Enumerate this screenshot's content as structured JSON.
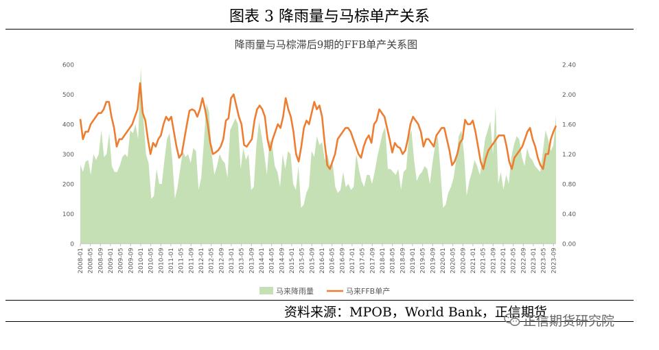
{
  "figure_title": "图表 3 降雨量与马棕单产关系",
  "source_text": "资料来源：MPOB，World Bank，正信期货",
  "watermark_text": "正信期货研究院",
  "watermark_icon": "wechat-icon",
  "colors": {
    "rain": "#c5e0b4",
    "ffb": "#ed7d31",
    "axis": "#bfbfbf",
    "tick": "#595959"
  },
  "chart_data": {
    "type": "area+line",
    "title": "降雨量与马棕滞后9期的FFB单产关系图",
    "xlabel": "",
    "ylabel": "",
    "y_left_lim": [
      0,
      600
    ],
    "y_left_ticks": [
      "0",
      "100",
      "200",
      "300",
      "400",
      "500",
      "600"
    ],
    "y_right_lim": [
      0,
      2.4
    ],
    "y_right_ticks": [
      "0.00",
      "0.40",
      "0.80",
      "1.20",
      "1.60",
      "2.00",
      "2.40"
    ],
    "x_start": "2008-01",
    "x_end": "2023-10",
    "x_tick_labels": [
      "2008-01",
      "2008-05",
      "2008-09",
      "2009-01",
      "2009-05",
      "2009-09",
      "2010-01",
      "2010-05",
      "2010-09",
      "2011-01",
      "2011-05",
      "2011-09",
      "2012-01",
      "2012-05",
      "2012-09",
      "2013-01",
      "2013-05",
      "2013-09",
      "2014-01",
      "2014-05",
      "2014-09",
      "2015-01",
      "2015-05",
      "2015-09",
      "2016-01",
      "2016-05",
      "2016-09",
      "2017-01",
      "2017-05",
      "2017-09",
      "2018-01",
      "2018-05",
      "2018-09",
      "2019-01",
      "2019-05",
      "2019-09",
      "2020-01",
      "2020-05",
      "2020-09",
      "2021-01",
      "2021-05",
      "2021-09",
      "2022-01",
      "2022-05",
      "2022-09",
      "2023-01",
      "2023-05",
      "2023-09"
    ],
    "legend_position": "bottom",
    "grid": false,
    "series": [
      {
        "name": "马来降雨量",
        "type": "area",
        "axis": "left",
        "values": [
          265,
          240,
          275,
          280,
          230,
          300,
          280,
          300,
          380,
          290,
          300,
          370,
          260,
          240,
          240,
          260,
          290,
          300,
          290,
          380,
          370,
          400,
          350,
          590,
          420,
          300,
          270,
          150,
          160,
          250,
          200,
          200,
          280,
          350,
          370,
          280,
          150,
          190,
          250,
          310,
          290,
          300,
          270,
          320,
          310,
          180,
          220,
          340,
          470,
          440,
          300,
          230,
          260,
          300,
          280,
          270,
          220,
          380,
          400,
          420,
          400,
          250,
          320,
          280,
          300,
          180,
          190,
          330,
          410,
          360,
          300,
          230,
          350,
          330,
          260,
          240,
          190,
          300,
          250,
          310,
          300,
          200,
          180,
          260,
          120,
          130,
          170,
          190,
          310,
          290,
          360,
          330,
          340,
          280,
          300,
          260,
          270,
          190,
          170,
          180,
          240,
          190,
          200,
          180,
          190,
          300,
          250,
          210,
          190,
          230,
          230,
          200,
          240,
          290,
          330,
          370,
          390,
          250,
          250,
          240,
          230,
          250,
          180,
          240,
          250,
          360,
          380,
          280,
          210,
          230,
          240,
          260,
          250,
          200,
          270,
          330,
          360,
          250,
          120,
          130,
          170,
          190,
          220,
          280,
          360,
          380,
          300,
          160,
          210,
          240,
          280,
          260,
          230,
          280,
          350,
          380,
          410,
          300,
          460,
          200,
          240,
          180,
          230,
          200,
          290,
          330,
          360,
          350,
          290,
          260,
          320,
          290,
          280,
          260,
          250,
          240,
          310,
          380,
          350,
          310,
          330,
          430
        ]
      },
      {
        "name": "马来FFB单产",
        "type": "line",
        "axis": "right",
        "values": [
          1.67,
          1.4,
          1.5,
          1.5,
          1.6,
          1.65,
          1.7,
          1.75,
          1.75,
          1.8,
          1.9,
          1.9,
          1.7,
          1.55,
          1.3,
          1.4,
          1.4,
          1.45,
          1.5,
          1.55,
          1.6,
          1.7,
          1.8,
          2.15,
          1.75,
          1.65,
          1.4,
          1.2,
          1.35,
          1.3,
          1.4,
          1.45,
          1.6,
          1.7,
          1.65,
          1.7,
          1.5,
          1.3,
          1.15,
          1.2,
          1.4,
          1.6,
          1.78,
          1.8,
          1.78,
          1.7,
          1.8,
          1.95,
          1.8,
          1.6,
          1.35,
          1.2,
          1.22,
          1.25,
          1.3,
          1.4,
          1.65,
          1.68,
          1.95,
          2.0,
          1.85,
          1.7,
          1.6,
          1.32,
          1.3,
          1.35,
          1.4,
          1.65,
          1.8,
          1.85,
          1.8,
          1.7,
          1.4,
          1.25,
          1.4,
          1.5,
          1.6,
          1.55,
          1.7,
          1.95,
          1.8,
          1.7,
          1.5,
          1.2,
          1.1,
          1.3,
          1.55,
          1.65,
          1.6,
          1.75,
          1.9,
          1.8,
          1.85,
          1.7,
          1.35,
          1.05,
          1.0,
          1.1,
          1.2,
          1.4,
          1.45,
          1.5,
          1.55,
          1.55,
          1.5,
          1.4,
          1.3,
          1.2,
          1.15,
          1.3,
          1.4,
          1.45,
          1.35,
          1.6,
          1.65,
          1.8,
          1.75,
          1.7,
          1.55,
          1.4,
          1.22,
          1.35,
          1.3,
          1.28,
          1.2,
          1.25,
          1.4,
          1.6,
          1.7,
          1.65,
          1.6,
          1.5,
          1.3,
          1.4,
          1.4,
          1.35,
          1.3,
          1.45,
          1.5,
          1.55,
          1.55,
          1.4,
          1.25,
          1.05,
          1.1,
          1.2,
          1.35,
          1.4,
          1.66,
          1.6,
          1.6,
          1.65,
          1.5,
          1.3,
          1.1,
          1.0,
          1.15,
          1.25,
          1.3,
          1.35,
          1.4,
          1.45,
          1.45,
          1.45,
          1.3,
          1.1,
          1.0,
          1.15,
          1.2,
          1.25,
          1.3,
          1.4,
          1.5,
          1.55,
          1.4,
          1.3,
          1.15,
          1.05,
          1.0,
          1.2,
          1.2,
          1.4,
          1.5,
          1.58
        ]
      }
    ]
  }
}
